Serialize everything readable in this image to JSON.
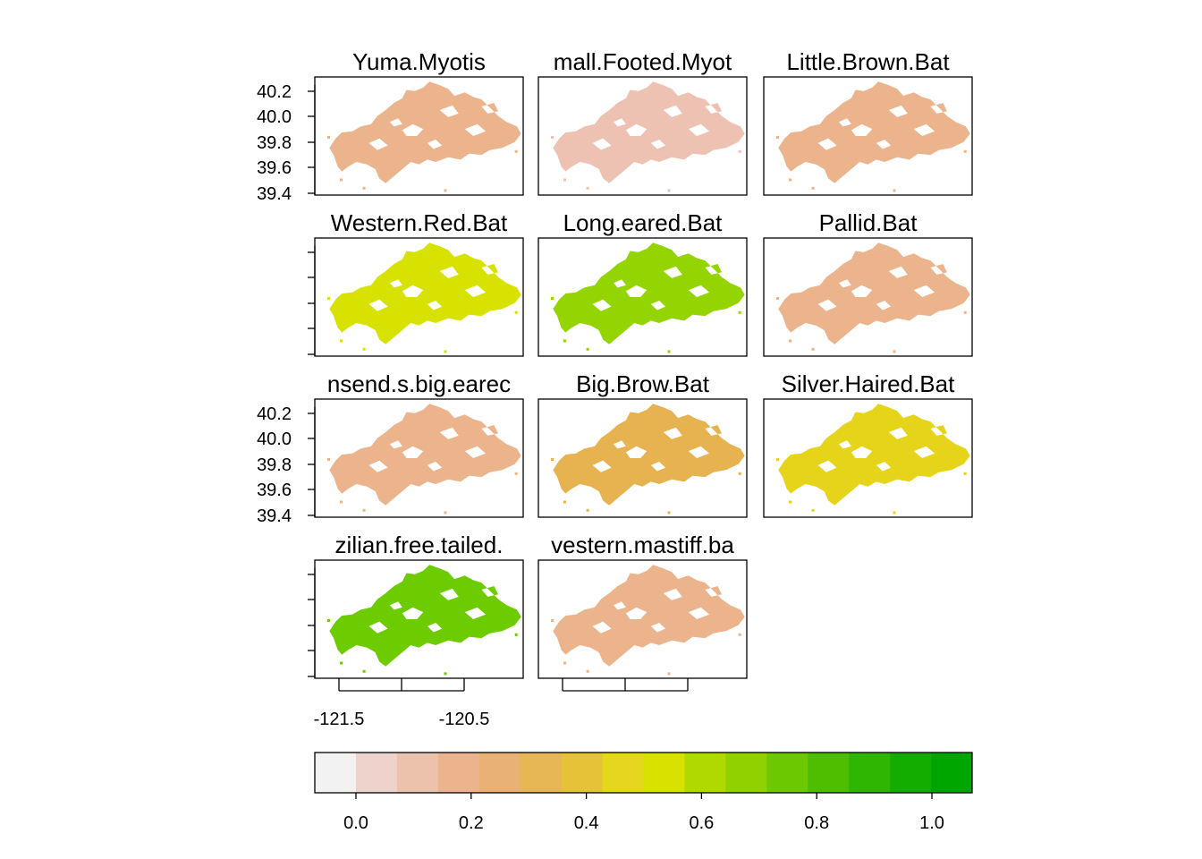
{
  "chart_data": {
    "type": "heatmap",
    "panels": [
      {
        "name": "Yuma.Myotis",
        "title": "Yuma.Myotis",
        "value": 0.2,
        "color": "#ebb48c"
      },
      {
        "name": "Small.Footed.Myotis",
        "title": "mall.Footed.Myot",
        "value": 0.1,
        "color": "#eec2b2"
      },
      {
        "name": "Little.Brown.Bat",
        "title": "Little.Brown.Bat",
        "value": 0.2,
        "color": "#ebb48c"
      },
      {
        "name": "Western.Red.Bat",
        "title": "Western.Red.Bat",
        "value": 0.55,
        "color": "#d7e200"
      },
      {
        "name": "Long.eared.Bat",
        "title": "Long.eared.Bat",
        "value": 0.65,
        "color": "#94d400"
      },
      {
        "name": "Pallid.Bat",
        "title": "Pallid.Bat",
        "value": 0.2,
        "color": "#ebb48c"
      },
      {
        "name": "Townsend.s.big.eared.Bat",
        "title": "nsend.s.big.earec",
        "value": 0.2,
        "color": "#ebb48c"
      },
      {
        "name": "Big.Brow.Bat",
        "title": "Big.Brow.Bat",
        "value": 0.35,
        "color": "#e7b250"
      },
      {
        "name": "Silver.Haired.Bat",
        "title": "Silver.Haired.Bat",
        "value": 0.5,
        "color": "#e6d41a"
      },
      {
        "name": "Brazilian.free.tailed.Bat",
        "title": "zilian.free.tailed.",
        "value": 0.75,
        "color": "#6ccc00"
      },
      {
        "name": "Western.mastiff.bat",
        "title": "vestern.mastiff.ba",
        "value": 0.2,
        "color": "#ebb48c"
      }
    ],
    "y_ticks": [
      "40.2",
      "40.0",
      "39.8",
      "39.6",
      "39.4"
    ],
    "x_ticks": [
      "-121.5",
      "-120.5"
    ],
    "colorbar": {
      "ticks": [
        "0.0",
        "0.2",
        "0.4",
        "0.6",
        "0.8",
        "1.0"
      ],
      "colors": [
        "#f2f2f2",
        "#eed3cd",
        "#ecc2ac",
        "#ebb48c",
        "#e9b173",
        "#e7b655",
        "#e5c238",
        "#e5d71d",
        "#d7e200",
        "#afd900",
        "#91d100",
        "#6cc800",
        "#4dbf00",
        "#2fb600",
        "#13ad00",
        "#00a600"
      ]
    }
  }
}
